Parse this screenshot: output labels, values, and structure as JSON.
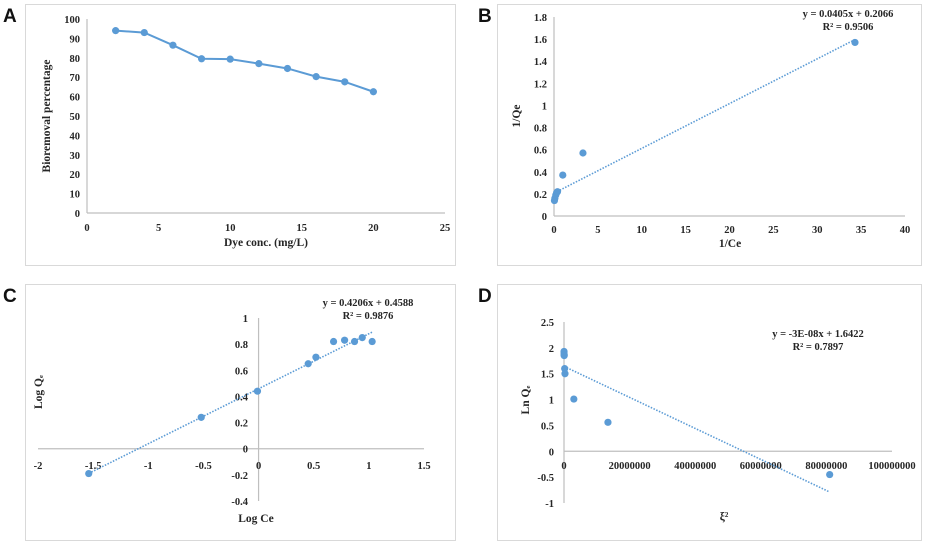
{
  "panels": [
    {
      "label": "A"
    },
    {
      "label": "B"
    },
    {
      "label": "C"
    },
    {
      "label": "D"
    }
  ],
  "chart_data": [
    {
      "panel": "A",
      "type": "line",
      "title": "",
      "xlabel": "Dye conc. (mg/L)",
      "ylabel": "Bioremoval percentage",
      "xlim": [
        0,
        25
      ],
      "ylim": [
        0,
        100
      ],
      "xticks": [
        0,
        5,
        10,
        15,
        20,
        25
      ],
      "yticks": [
        0,
        10,
        20,
        30,
        40,
        50,
        60,
        70,
        80,
        90,
        100
      ],
      "grid": false,
      "color": "#5B9BD5",
      "x": [
        2,
        4,
        6,
        8,
        10,
        12,
        14,
        16,
        18,
        20
      ],
      "y": [
        94,
        93,
        86.5,
        79.5,
        79.3,
        77,
        74.5,
        70.3,
        67.6,
        62.5
      ]
    },
    {
      "panel": "B",
      "type": "scatter",
      "title": "",
      "xlabel": "1/Ce",
      "ylabel": "1/Qe",
      "xlim": [
        0,
        40
      ],
      "ylim": [
        0,
        1.8
      ],
      "xticks": [
        0,
        5,
        10,
        15,
        20,
        25,
        30,
        35,
        40
      ],
      "yticks": [
        0,
        0.2,
        0.4,
        0.6,
        0.8,
        1,
        1.2,
        1.4,
        1.6,
        1.8
      ],
      "grid": false,
      "color": "#5B9BD5",
      "x": [
        0.05,
        0.1,
        0.2,
        0.3,
        0.4,
        1.0,
        3.3,
        34.3
      ],
      "y": [
        0.14,
        0.16,
        0.19,
        0.21,
        0.22,
        0.37,
        0.57,
        1.57
      ],
      "trendline": {
        "slope": 0.0405,
        "intercept": 0.2066,
        "x_range": [
          0.05,
          34.3
        ]
      },
      "annotation": [
        "y = 0.0405x + 0.2066",
        "R² = 0.9506"
      ]
    },
    {
      "panel": "C",
      "type": "scatter",
      "title": "",
      "xlabel": "Log Ce",
      "ylabel": "Log Qₑ",
      "xlim": [
        -2,
        1.5
      ],
      "ylim": [
        -0.4,
        1
      ],
      "xticks": [
        -2,
        -1.5,
        -1,
        -0.5,
        0,
        0.5,
        1,
        1.5
      ],
      "yticks": [
        -0.4,
        -0.2,
        0,
        0.2,
        0.4,
        0.6,
        0.8,
        1
      ],
      "grid": false,
      "color": "#5B9BD5",
      "x": [
        -1.54,
        -0.52,
        -0.01,
        0.45,
        0.52,
        0.68,
        0.78,
        0.87,
        0.94,
        1.03
      ],
      "y": [
        -0.19,
        0.24,
        0.44,
        0.65,
        0.7,
        0.82,
        0.83,
        0.82,
        0.85,
        0.82
      ],
      "trendline": {
        "slope": 0.4206,
        "intercept": 0.4588,
        "x_range": [
          -1.54,
          1.03
        ]
      },
      "annotation": [
        "y = 0.4206x + 0.4588",
        "R² = 0.9876"
      ]
    },
    {
      "panel": "D",
      "type": "scatter",
      "title": "",
      "xlabel": "ξ²",
      "ylabel": "Ln Qₑ",
      "xlim": [
        0,
        100000000
      ],
      "ylim": [
        -1,
        2.5
      ],
      "xticks": [
        0,
        20000000,
        40000000,
        60000000,
        80000000,
        100000000
      ],
      "yticks": [
        -1,
        -0.5,
        0,
        0.5,
        1,
        1.5,
        2,
        2.5
      ],
      "grid": false,
      "color": "#5B9BD5",
      "x": [
        10000,
        20000,
        40000,
        60000,
        200000,
        300000,
        3000000,
        13400000,
        81000000
      ],
      "y": [
        1.93,
        1.9,
        1.87,
        1.85,
        1.6,
        1.5,
        1.01,
        0.56,
        -0.45
      ],
      "trendline": {
        "slope": -3e-08,
        "intercept": 1.6422,
        "x_range": [
          0,
          81000000
        ]
      },
      "annotation": [
        "y = -3E-08x + 1.6422",
        "R² = 0.7897"
      ]
    }
  ]
}
